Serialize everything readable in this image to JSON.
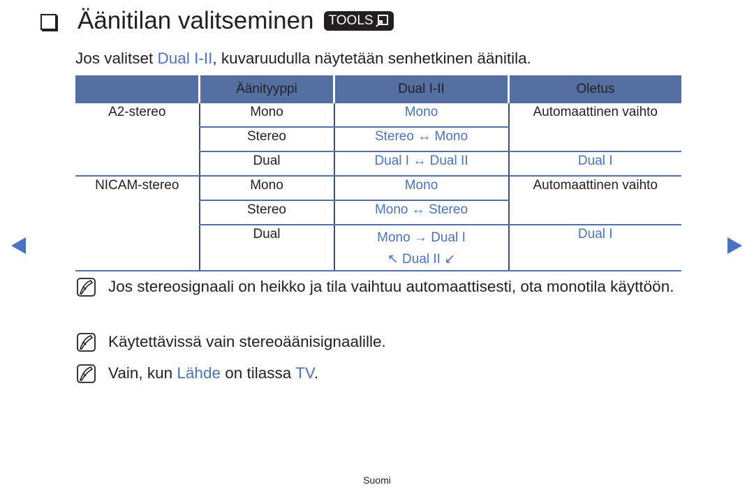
{
  "title": {
    "text": "Äänitilan valitseminen",
    "badge": "TOOLS",
    "badge_icon": "tools-remote-icon"
  },
  "intro": {
    "before": "Jos valitset ",
    "highlight": "Dual I-II",
    "after": ", kuvaruudulla näytetään senhetkinen äänitila."
  },
  "table": {
    "headers": [
      "",
      "Äänityyppi",
      "Dual I-II",
      "Oletus"
    ],
    "rows": [
      {
        "group": "A2-stereo",
        "type": "Mono",
        "dual": "Mono",
        "default": "Automaattinen vaihto"
      },
      {
        "type": "Stereo",
        "dual": "Stereo ↔ Mono"
      },
      {
        "type": "Dual",
        "dual": "Dual I ↔ Dual II",
        "default": "Dual I"
      },
      {
        "group": "NICAM-stereo",
        "type": "Mono",
        "dual": "Mono",
        "default": "Automaattinen vaihto"
      },
      {
        "type": "Stereo",
        "dual": "Mono ↔ Stereo"
      },
      {
        "type": "Dual",
        "dual": "Mono → Dual I",
        "dual2": "↖ Dual II ↙",
        "default": "Dual I"
      }
    ]
  },
  "notes": [
    {
      "text": "Jos stereosignaali on heikko ja tila vaihtuu automaattisesti, ota monotila käyttöön."
    },
    {
      "text": "Käytettävissä vain stereoäänisignaalille."
    },
    {
      "before": "Vain, kun ",
      "h1": "Lähde",
      "mid": " on tilassa ",
      "h2": "TV",
      "after": "."
    }
  ],
  "footer": "Suomi",
  "colors": {
    "accent": "#4a72bf",
    "table_header": "#5470a3"
  }
}
